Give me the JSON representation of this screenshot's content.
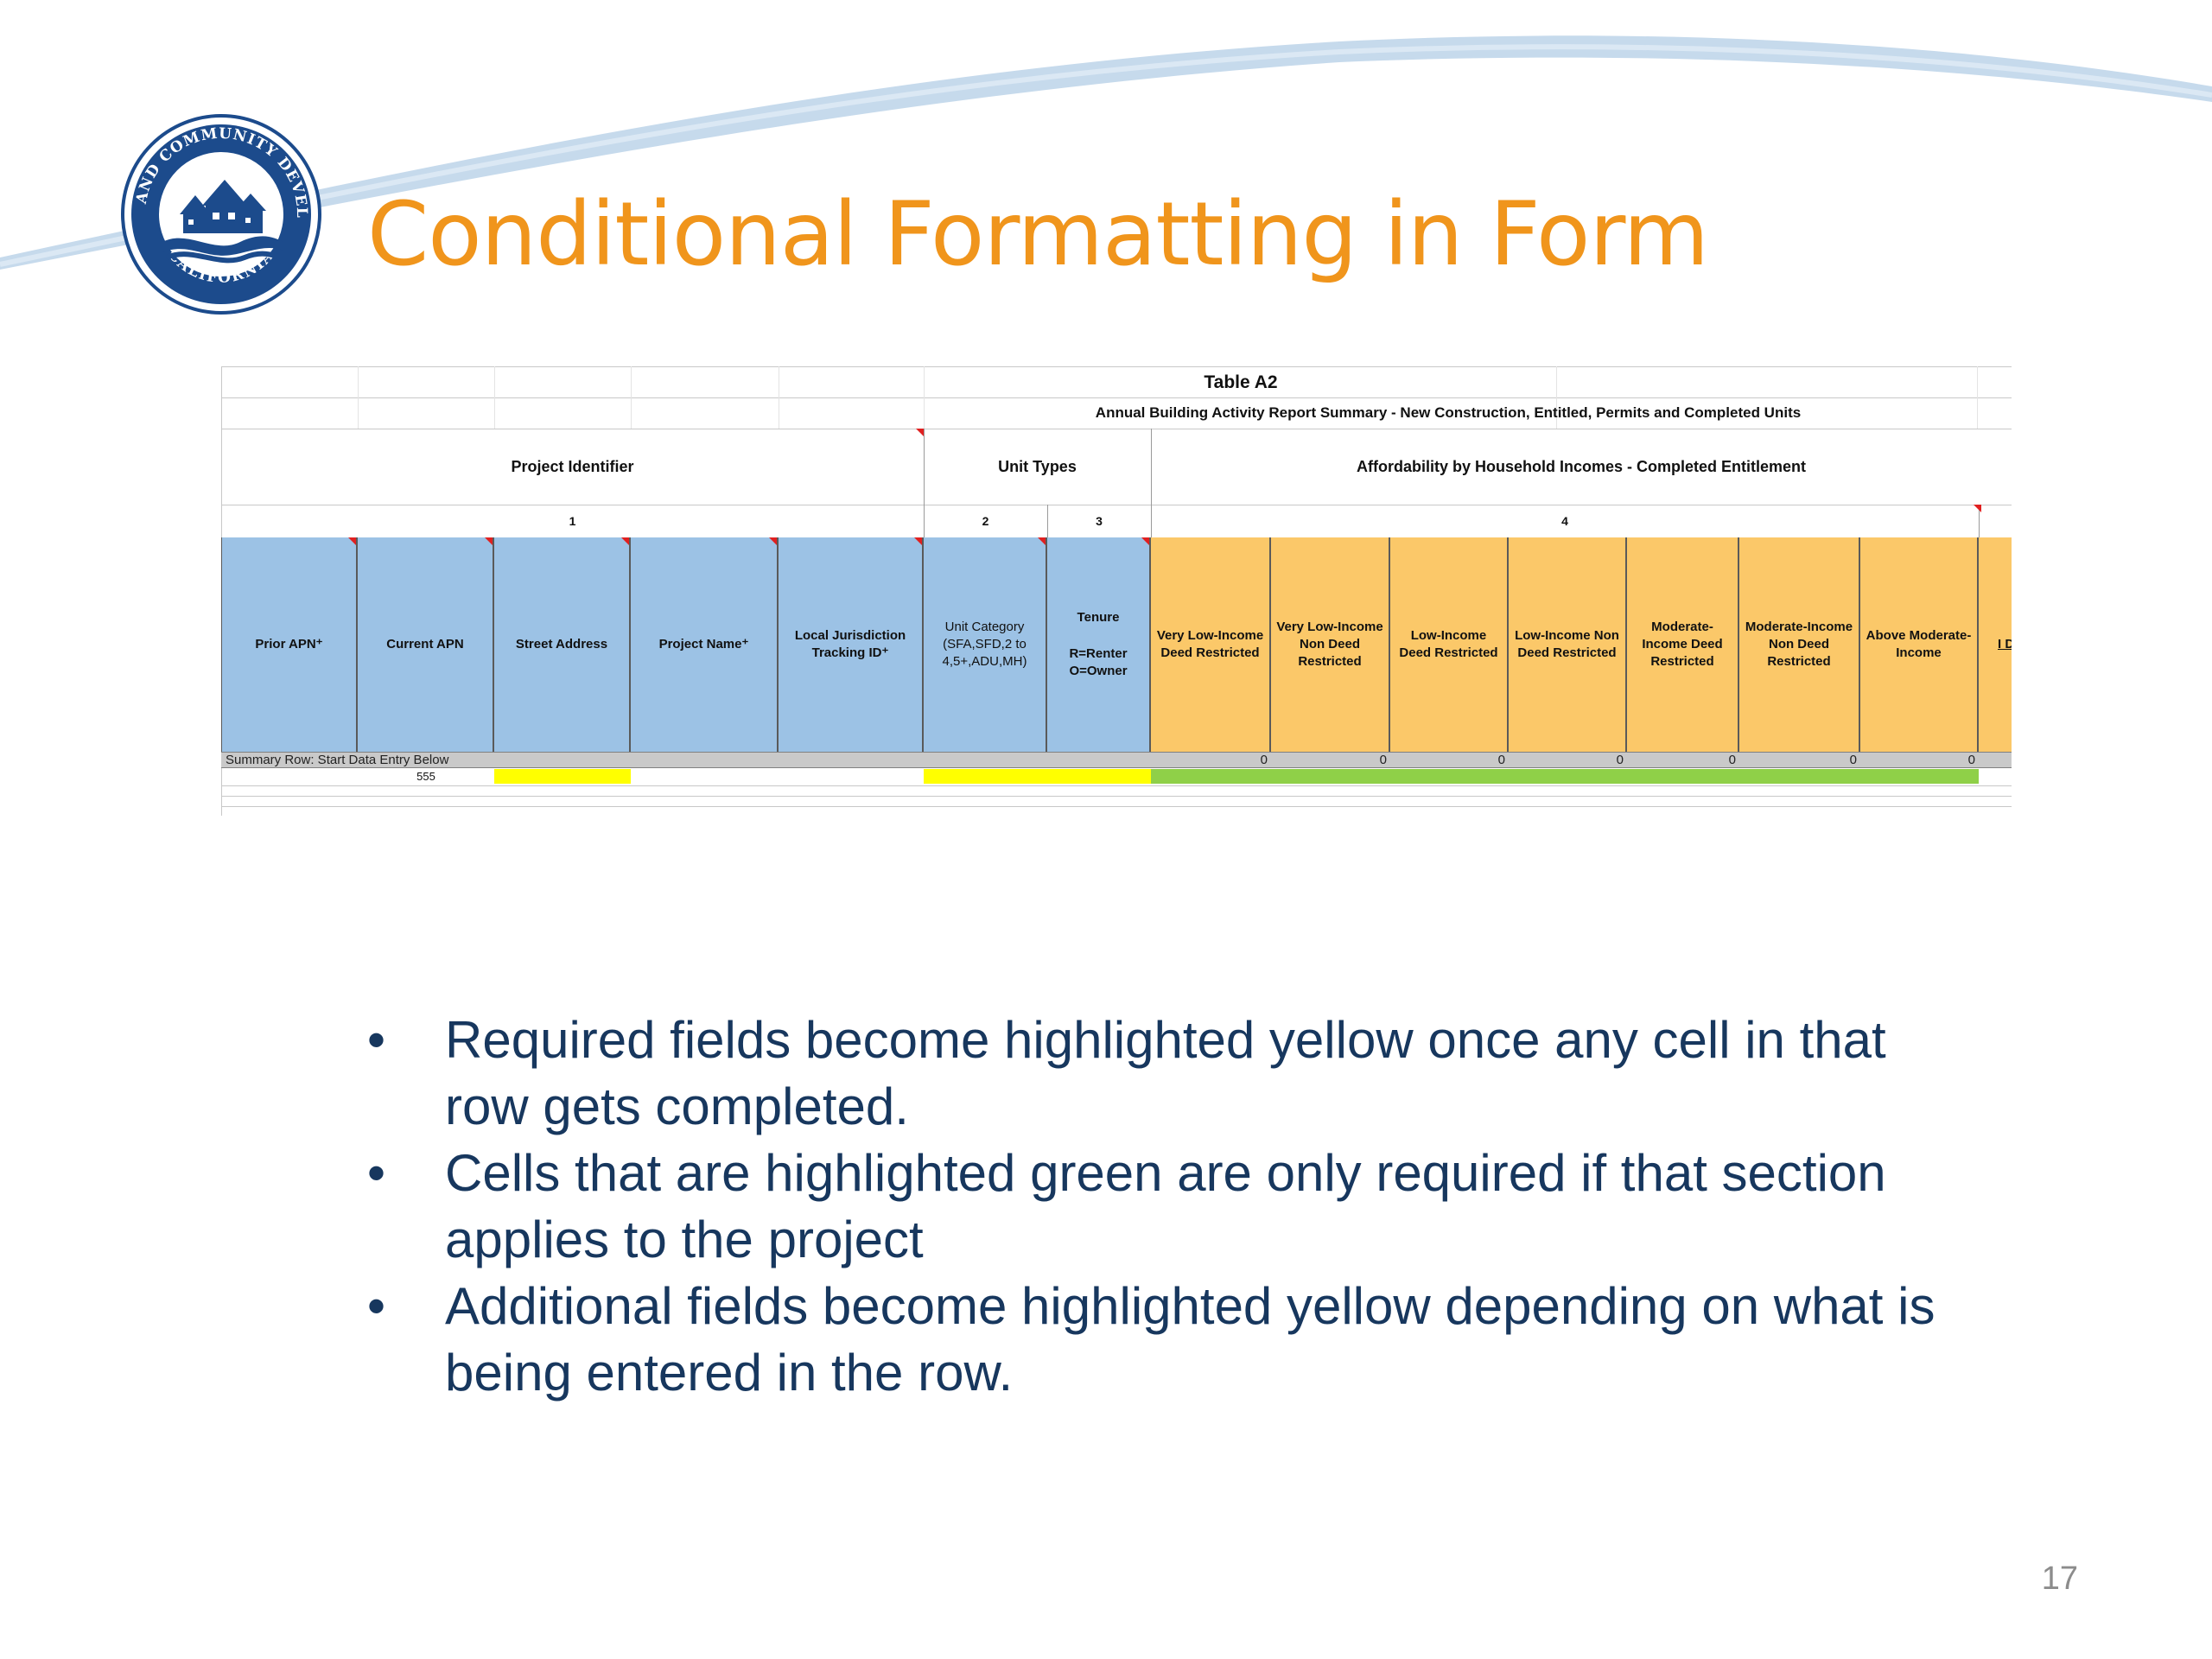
{
  "slide": {
    "title": "Conditional Formatting in Form",
    "page_number": "17",
    "colors": {
      "title": "#f0951c",
      "body_text": "#17375e",
      "swoosh": "#c6daec"
    }
  },
  "logo": {
    "icon": "seal-icon",
    "text": "HOUSING AND COMMUNITY DEVELOPMENT CALIFORNIA",
    "color": "#1c4b8c"
  },
  "spreadsheet": {
    "table_title": "Table A2",
    "subtitle": "Annual Building Activity Report Summary - New Construction, Entitled, Permits and Completed Units",
    "groups": {
      "project_identifier": "Project Identifier",
      "unit_types": "Unit Types",
      "affordability": "Affordability by Household Incomes - Completed Entitlement"
    },
    "group_numbers": [
      "1",
      "2",
      "3",
      "4"
    ],
    "columns": [
      "Prior APN⁺",
      "Current APN",
      "Street Address",
      "Project Name⁺",
      "Local Jurisdiction Tracking ID⁺",
      "Unit Category (SFA,SFD,2 to 4,5+,ADU,MH)",
      "Tenure",
      "R=Renter O=Owner",
      "Very Low-Income Deed Restricted",
      "Very Low-Income Non Deed Restricted",
      "Low-Income Deed Restricted",
      "Low-Income Non Deed Restricted",
      "Moderate-Income Deed Restricted",
      "Moderate-Income Non Deed Restricted",
      "Above Moderate-Income",
      "I D"
    ],
    "summary_row_label": "Summary Row: Start Data Entry Below",
    "summary_values": [
      "0",
      "0",
      "0",
      "0",
      "0",
      "0",
      "0"
    ],
    "entry_row_value": "555",
    "highlight_colors": {
      "required": "#ffff00",
      "conditional": "#8fd048",
      "id_columns": "#9cc2e5",
      "income_columns": "#fbc869"
    }
  },
  "bullets": [
    "Required fields become highlighted yellow once any cell in that row gets completed.",
    "Cells that are highlighted green are only required if that section applies to the project",
    "Additional fields become highlighted yellow depending on what is being entered in the row."
  ],
  "bullet_symbol": "•"
}
